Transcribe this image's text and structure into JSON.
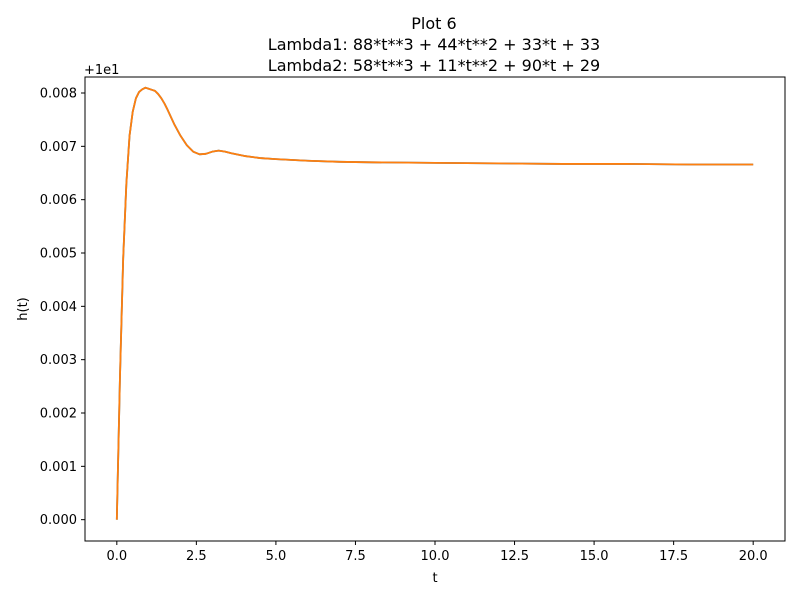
{
  "chart_data": {
    "type": "line",
    "title_lines": [
      "Plot 6",
      "Lambda1: 88*t**3 + 44*t**2 + 33*t + 33",
      "Lambda2: 58*t**3 + 11*t**2 + 90*t + 29"
    ],
    "xlabel": "t",
    "ylabel": "h(t)",
    "offset_label": "+1e1",
    "xlim": [
      -1.0,
      21.0
    ],
    "ylim": [
      -0.0004,
      0.0083
    ],
    "xticks": [
      0.0,
      2.5,
      5.0,
      7.5,
      10.0,
      12.5,
      15.0,
      17.5,
      20.0
    ],
    "xtick_labels": [
      "0.0",
      "2.5",
      "5.0",
      "7.5",
      "10.0",
      "12.5",
      "15.0",
      "17.5",
      "20.0"
    ],
    "yticks": [
      0.0,
      0.001,
      0.002,
      0.003,
      0.004,
      0.005,
      0.006,
      0.007,
      0.008
    ],
    "ytick_labels": [
      "0.000",
      "0.001",
      "0.002",
      "0.003",
      "0.004",
      "0.005",
      "0.006",
      "0.007",
      "0.008"
    ],
    "grid": false,
    "series": [
      {
        "color": "#1f77b4",
        "x": [
          0.0,
          0.1,
          0.2,
          0.3,
          0.4,
          0.5,
          0.6,
          0.7,
          0.8,
          0.9,
          1.0,
          1.1,
          1.2,
          1.3,
          1.4,
          1.5,
          1.6,
          1.8,
          2.0,
          2.2,
          2.4,
          2.6,
          2.8,
          3.0,
          3.2,
          3.4,
          3.6,
          4.0,
          4.5,
          5.0,
          6.0,
          7.0,
          8.0,
          10.0,
          12.0,
          14.0,
          16.0,
          18.0,
          20.0
        ],
        "y": [
          0.0,
          0.0027,
          0.0049,
          0.0063,
          0.0072,
          0.00765,
          0.0079,
          0.00802,
          0.00807,
          0.0081,
          0.00808,
          0.00806,
          0.00804,
          0.00798,
          0.0079,
          0.0078,
          0.00768,
          0.00742,
          0.0072,
          0.00702,
          0.0069,
          0.00685,
          0.00686,
          0.0069,
          0.00692,
          0.0069,
          0.00687,
          0.00682,
          0.00678,
          0.00676,
          0.00673,
          0.00671,
          0.0067,
          0.00669,
          0.00668,
          0.00667,
          0.00667,
          0.00666,
          0.00666
        ]
      },
      {
        "color": "#ff7f0e",
        "x": [
          0.0,
          0.1,
          0.2,
          0.3,
          0.4,
          0.5,
          0.6,
          0.7,
          0.8,
          0.9,
          1.0,
          1.1,
          1.2,
          1.3,
          1.4,
          1.5,
          1.6,
          1.8,
          2.0,
          2.2,
          2.4,
          2.6,
          2.8,
          3.0,
          3.2,
          3.4,
          3.6,
          4.0,
          4.5,
          5.0,
          6.0,
          7.0,
          8.0,
          10.0,
          12.0,
          14.0,
          16.0,
          18.0,
          20.0
        ],
        "y": [
          0.0,
          0.0027,
          0.0049,
          0.0063,
          0.0072,
          0.00765,
          0.0079,
          0.00802,
          0.00807,
          0.0081,
          0.00808,
          0.00806,
          0.00804,
          0.00798,
          0.0079,
          0.0078,
          0.00768,
          0.00742,
          0.0072,
          0.00702,
          0.0069,
          0.00685,
          0.00686,
          0.0069,
          0.00692,
          0.0069,
          0.00687,
          0.00682,
          0.00678,
          0.00676,
          0.00673,
          0.00671,
          0.0067,
          0.00669,
          0.00668,
          0.00667,
          0.00667,
          0.00666,
          0.00666
        ]
      }
    ]
  }
}
